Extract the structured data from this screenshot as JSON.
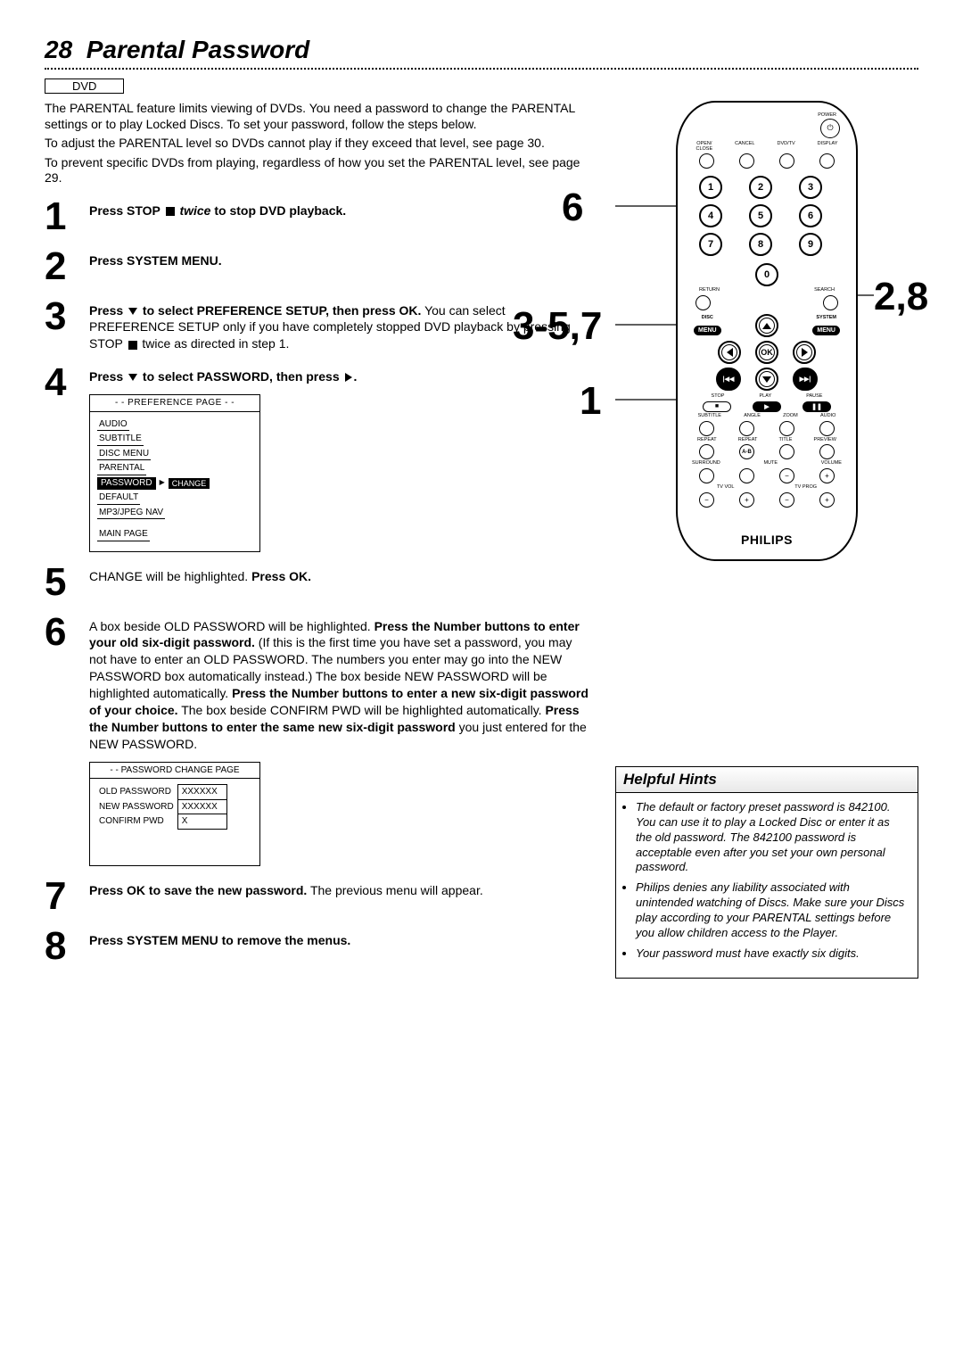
{
  "pageNumber": "28",
  "pageTitle": "Parental Password",
  "dvdLabel": "DVD",
  "intro": {
    "p1": "The PARENTAL feature limits viewing of DVDs.  You need a password to change the PARENTAL settings or to play Locked Discs. To set your password, follow the steps below.",
    "p2": "To adjust the PARENTAL level so DVDs cannot play if they exceed that level, see page 30.",
    "p3": "To prevent specific DVDs from playing, regardless of how you set the PARENTAL level, see page 29."
  },
  "steps": {
    "1": {
      "html": "<b>Press STOP <span class='sq-stop'></span> <i>twice</i> to stop DVD playback.</b>"
    },
    "2": {
      "html": "<b>Press SYSTEM MENU.</b>"
    },
    "3": {
      "html": "<b>Press <span class='arrow-down'></span> to select PREFERENCE SETUP, then press OK.</b> You can select PREFERENCE SETUP only if you have completely stopped DVD playback by pressing STOP <span class='sq-stop'></span> twice as directed in step 1."
    },
    "4": {
      "html": "<b>Press <span class='arrow-down'></span> to select PASSWORD, then press <span class='arrow-right'></span>.</b>"
    },
    "5": {
      "html": "CHANGE will be highlighted. <b>Press OK.</b>"
    },
    "6": {
      "html": "A box beside OLD PASSWORD will be highlighted. <b>Press the Number buttons to enter your old six-digit password.</b> (If this is the first time you have set a password, you may not have to enter an OLD PASSWORD. The numbers you enter may go into the NEW PASSWORD box automatically instead.) The box beside NEW PASSWORD will be highlighted automatically. <b>Press the Number buttons to enter a new six-digit password of your choice.</b> The box beside CONFIRM PWD will be highlighted automatically. <b>Press the Number buttons to enter the same new six-digit password</b> you just entered for the NEW PASSWORD."
    },
    "7": {
      "html": "<b>Press OK to save the new password.</b>  The previous menu will appear."
    },
    "8": {
      "html": "<b>Press SYSTEM MENU to remove the menus.</b>"
    }
  },
  "prefScreen": {
    "title": "- -   PREFERENCE PAGE   - -",
    "items": [
      "AUDIO",
      "SUBTITLE",
      "DISC MENU",
      "PARENTAL",
      "PASSWORD",
      "DEFAULT",
      "MP3/JPEG NAV"
    ],
    "selected": "PASSWORD",
    "chip": "CHANGE",
    "footer": "MAIN PAGE"
  },
  "pwScreen": {
    "title": "- -   PASSWORD CHANGE PAGE",
    "rows": [
      {
        "k": "OLD PASSWORD",
        "v": "XXXXXX"
      },
      {
        "k": "NEW PASSWORD",
        "v": "XXXXXX"
      },
      {
        "k": "CONFIRM PWD",
        "v": "X"
      }
    ]
  },
  "remote": {
    "brand": "PHILIPS",
    "topLabels": [
      "OPEN/\nCLOSE",
      "CANCEL",
      "DVD/TV",
      "DISPLAY"
    ],
    "powerLabel": "POWER",
    "numbers": [
      "1",
      "2",
      "3",
      "4",
      "5",
      "6",
      "7",
      "8",
      "9"
    ],
    "zero": "0",
    "returnLabel": "RETURN",
    "searchLabel": "SEARCH",
    "discMenu": "DISC",
    "systemMenu": "SYSTEM",
    "menuWord": "MENU",
    "ok": "OK",
    "transportLabels": {
      "stop": "STOP",
      "play": "PLAY",
      "pause": "PAUSE"
    },
    "row1": [
      "SUBTITLE",
      "ANGLE",
      "ZOOM",
      "AUDIO"
    ],
    "row2": [
      "REPEAT",
      "REPEAT",
      "TITLE",
      "PREVIEW"
    ],
    "ab": "A-B",
    "row3": [
      "SURROUND",
      "MUTE",
      "VOLUME"
    ],
    "row4": [
      "TV VOL",
      "TV PROG"
    ]
  },
  "callouts": {
    "a": "6",
    "b": "3-5,7",
    "c": "1",
    "d": "2,8"
  },
  "hints": {
    "header": "Helpful Hints",
    "items": [
      "The default or factory preset password is 842100.  You can use it to play a Locked Disc or enter it as the old password. The 842100 password is acceptable even after you set your own personal password.",
      "Philips denies any liability associated with unintended watching of Discs. Make sure your Discs play according to your PARENTAL settings before you allow children access to the Player.",
      "Your password must have exactly six digits."
    ]
  },
  "colors": {
    "fg": "#000000",
    "bg": "#ffffff",
    "grey": "#e8e8e8"
  }
}
